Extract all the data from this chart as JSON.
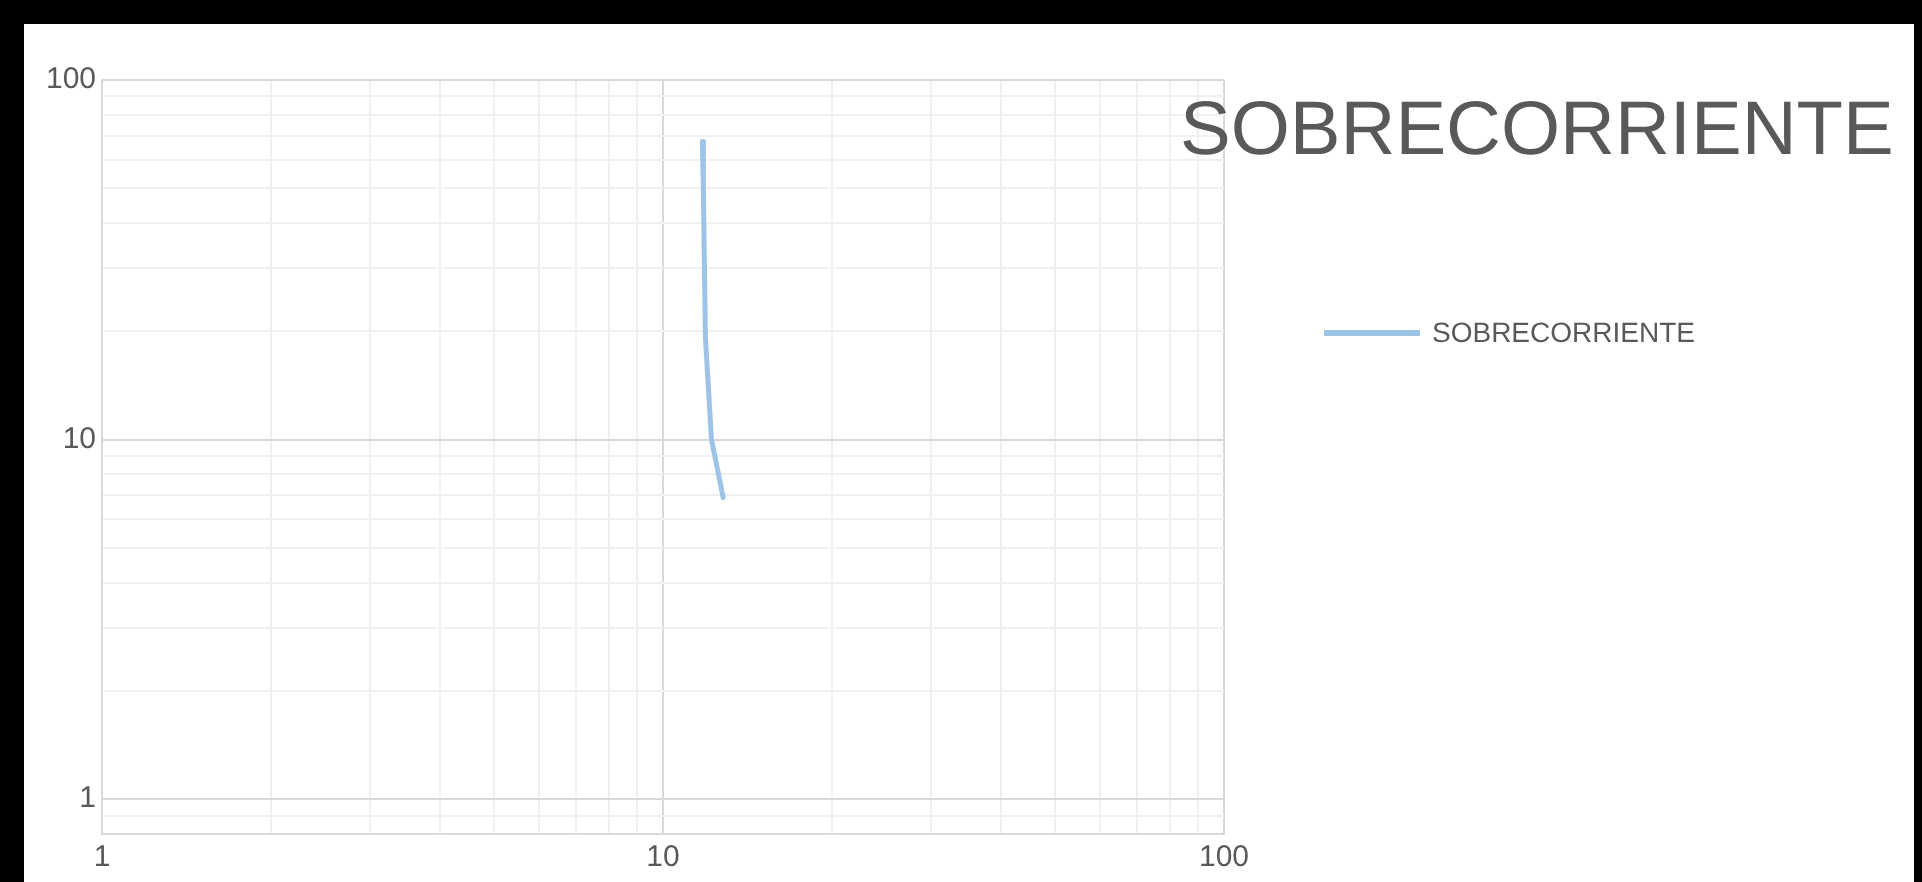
{
  "chart_data": {
    "type": "line",
    "title": "SOBRECORRIENTE",
    "log": "xy",
    "grid": true,
    "legend": "right",
    "marker": "none",
    "line_style": "solid",
    "x": [
      11.75,
      11.8,
      11.9,
      12.2,
      12.8
    ],
    "series": [
      {
        "name": "SOBRECORRIENTE",
        "color": "#9dc3e6",
        "values": [
          67.4,
          50,
          19.2,
          10,
          6.9
        ]
      }
    ],
    "xlim": [
      1,
      100
    ],
    "xticks": [
      1,
      {
        "value": 2,
        "label": null
      },
      {
        "value": 3,
        "label": null
      },
      {
        "value": 4,
        "label": null
      },
      {
        "value": 5,
        "label": null
      },
      {
        "value": 6,
        "label": null
      },
      {
        "value": 7,
        "label": null
      },
      {
        "value": 8,
        "label": null
      },
      {
        "value": 9,
        "label": null
      },
      10,
      {
        "value": 20,
        "label": null
      },
      {
        "value": 30,
        "label": null
      },
      {
        "value": 40,
        "label": null
      },
      {
        "value": 50,
        "label": null
      },
      {
        "value": 60,
        "label": null
      },
      {
        "value": 70,
        "label": null
      },
      {
        "value": 80,
        "label": null
      },
      {
        "value": 90,
        "label": null
      },
      100
    ],
    "ylim": [
      0.8,
      100
    ],
    "yticks": [
      {
        "value": 0.8,
        "label": null
      },
      {
        "value": 0.9,
        "label": null
      },
      1,
      {
        "value": 2,
        "label": null
      },
      {
        "value": 3,
        "label": null
      },
      {
        "value": 4,
        "label": null
      },
      {
        "value": 5,
        "label": null
      },
      {
        "value": 6,
        "label": null
      },
      {
        "value": 7,
        "label": null
      },
      {
        "value": 8,
        "label": null
      },
      {
        "value": 9,
        "label": null
      },
      10,
      {
        "value": 20,
        "label": null
      },
      {
        "value": 30,
        "label": null
      },
      {
        "value": 40,
        "label": null
      },
      {
        "value": 50,
        "label": null
      },
      {
        "value": 60,
        "label": null
      },
      {
        "value": 70,
        "label": null
      },
      {
        "value": 80,
        "label": null
      },
      {
        "value": 90,
        "label": null
      },
      100
    ]
  }
}
